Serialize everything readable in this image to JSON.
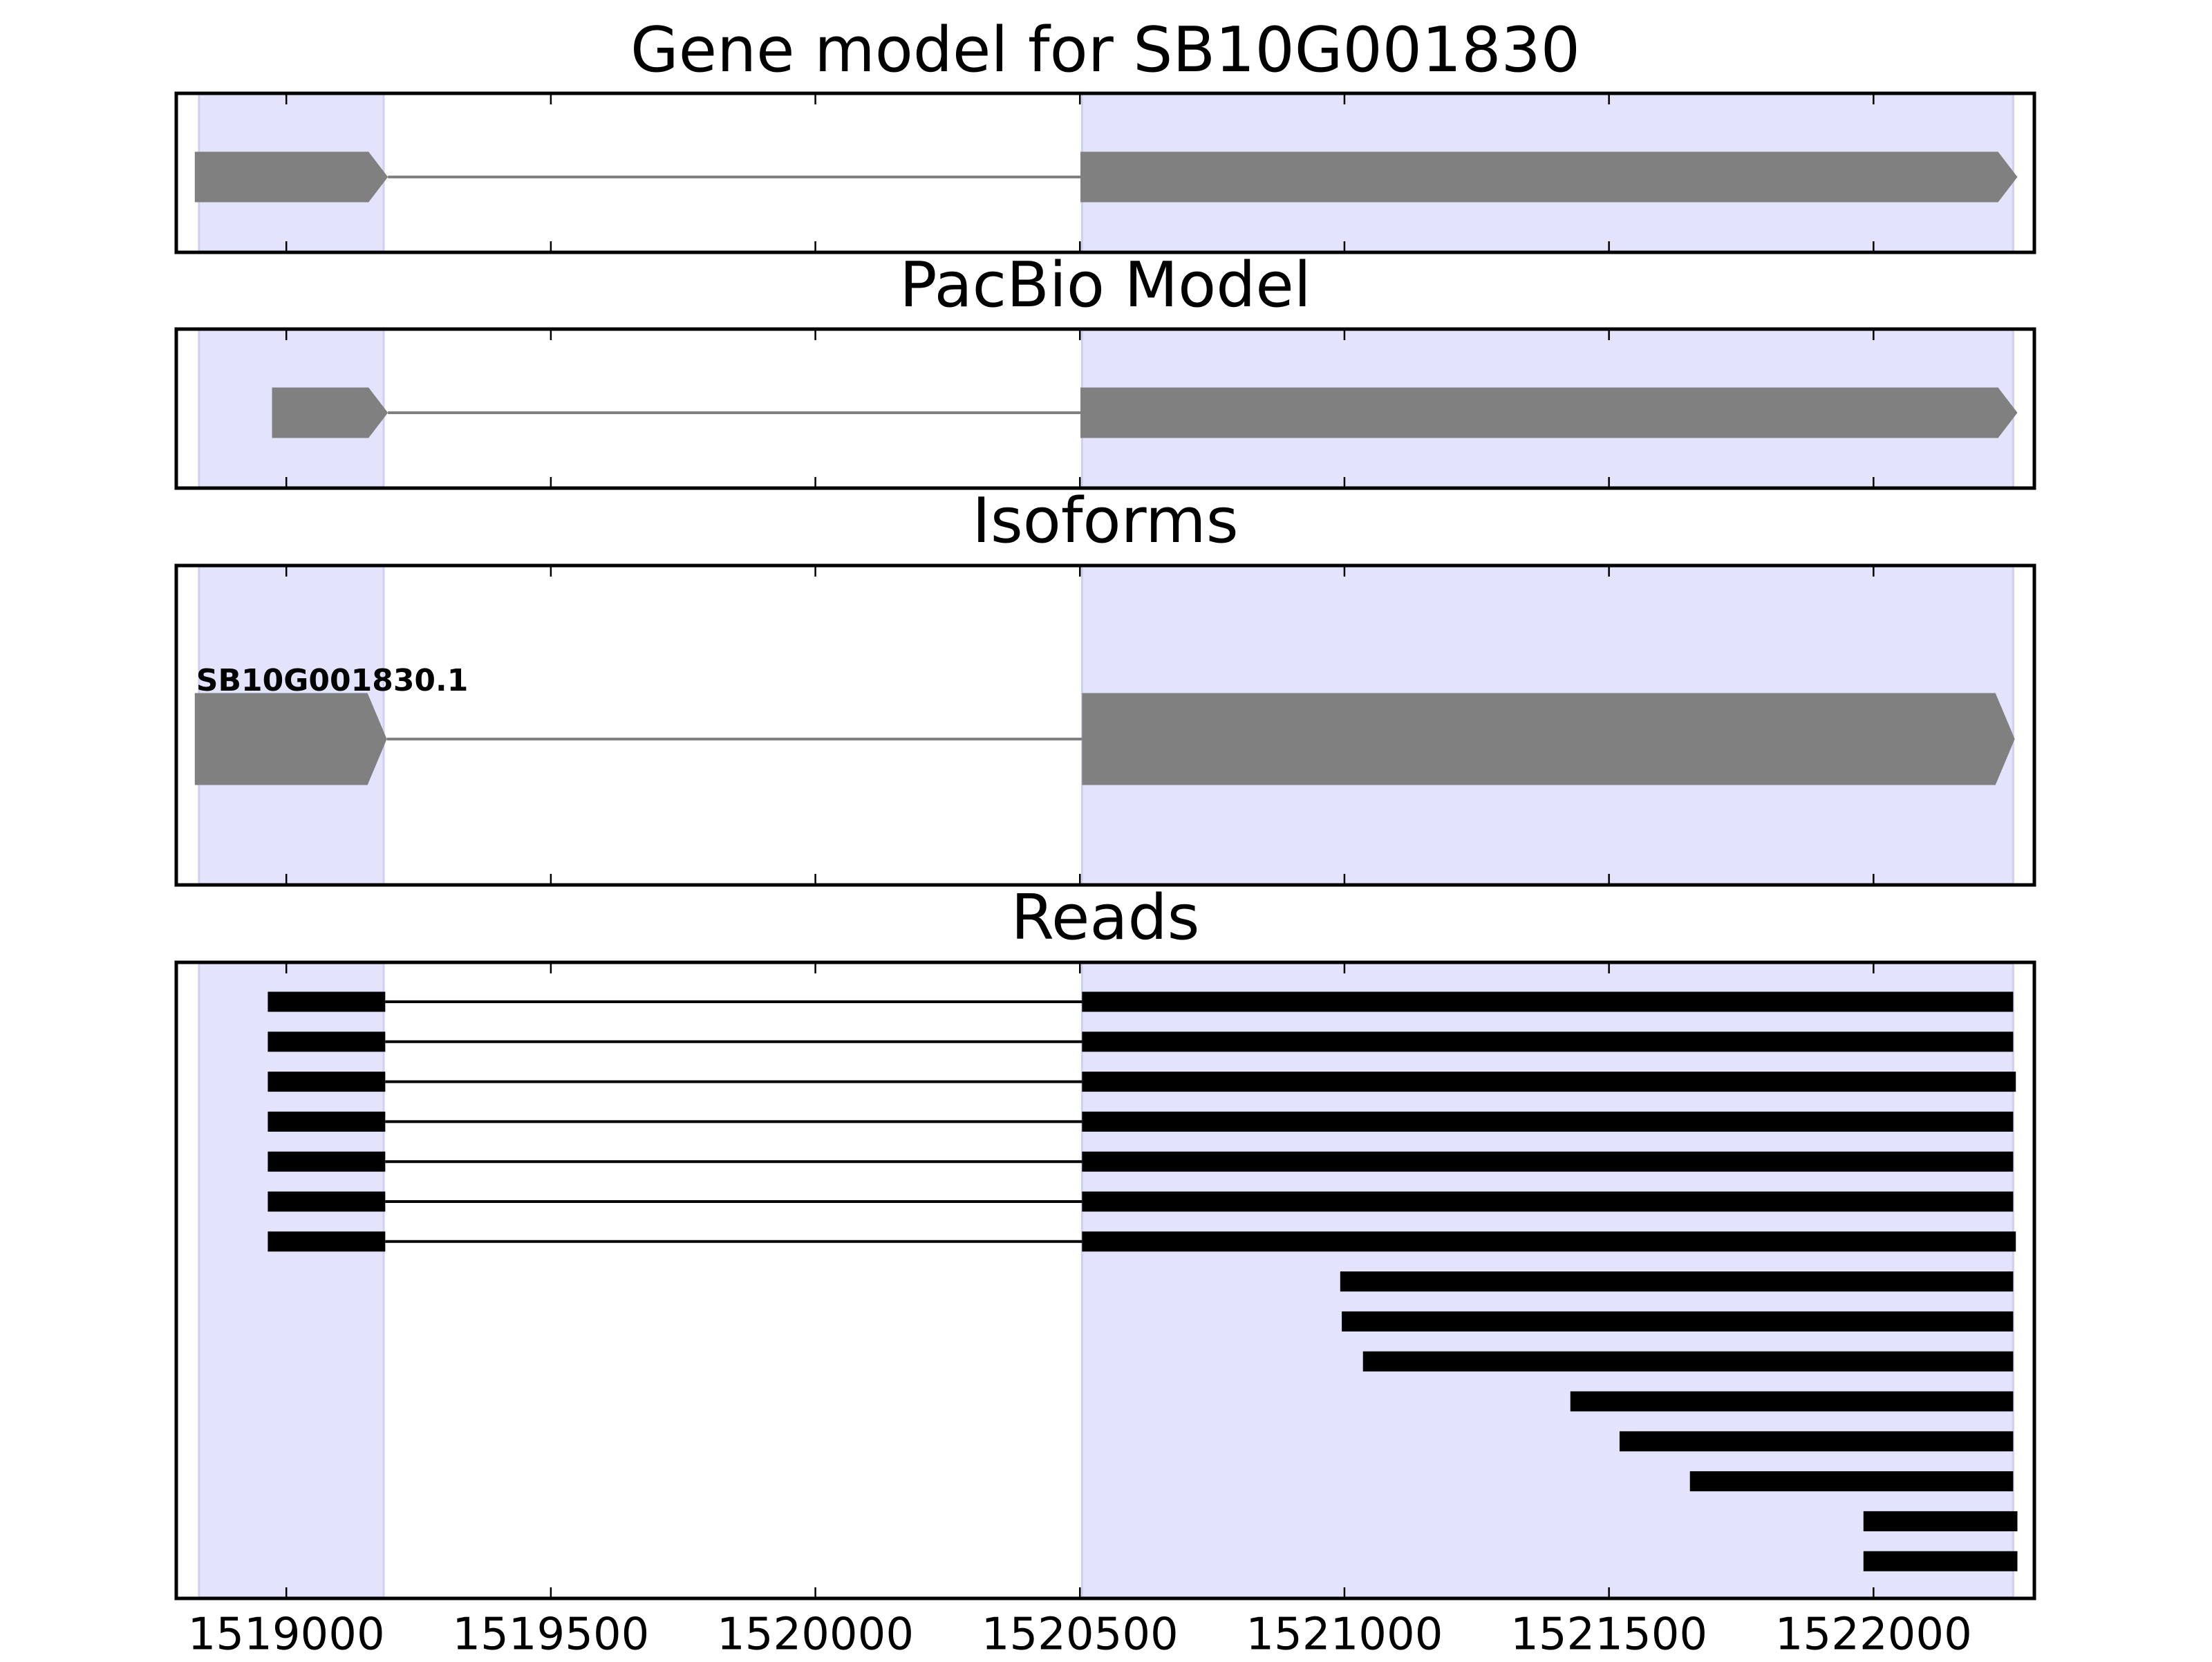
{
  "chart_data": [
    {
      "type": "gene",
      "title": "Gene model for SB10G001830",
      "color": "#808080",
      "shade_color": "#e3e3fc",
      "xlim": [
        1518792,
        1522304
      ],
      "xticks": [
        1519000,
        1519500,
        1520000,
        1520500,
        1521000,
        1521500,
        1522000
      ],
      "shaded": [
        [
          1518835,
          1519184
        ],
        [
          1520504,
          1522264
        ]
      ],
      "exons": [
        [
          1518827,
          1519192
        ],
        [
          1520501,
          1522272
        ]
      ]
    },
    {
      "type": "gene",
      "title": "PacBio Model",
      "color": "#808080",
      "shade_color": "#e3e3fc",
      "xlim": [
        1518792,
        1522304
      ],
      "xticks": [
        1519000,
        1519500,
        1520000,
        1520500,
        1521000,
        1521500,
        1522000
      ],
      "shaded": [
        [
          1518835,
          1519184
        ],
        [
          1520504,
          1522264
        ]
      ],
      "exons": [
        [
          1518973,
          1519192
        ],
        [
          1520501,
          1522272
        ]
      ]
    },
    {
      "type": "isoforms",
      "title": "Isoforms",
      "color": "#808080",
      "shade_color": "#e3e3fc",
      "xlim": [
        1518792,
        1522304
      ],
      "xticks": [
        1519000,
        1519500,
        1520000,
        1520500,
        1521000,
        1521500,
        1522000
      ],
      "shaded": [
        [
          1518835,
          1519184
        ],
        [
          1520504,
          1522264
        ]
      ],
      "series": [
        {
          "name": "SB10G001830.1",
          "exons": [
            [
              1518827,
              1519190
            ],
            [
              1520504,
              1522267
            ]
          ]
        }
      ]
    },
    {
      "type": "reads",
      "title": "Reads",
      "color": "#000000",
      "shade_color": "#e3e3fc",
      "xlim": [
        1518792,
        1522304
      ],
      "xticks": [
        1519000,
        1519500,
        1520000,
        1520500,
        1521000,
        1521500,
        1522000
      ],
      "shaded": [
        [
          1518835,
          1519184
        ],
        [
          1520504,
          1522264
        ]
      ],
      "reads": [
        [
          [
            1518965,
            1519187
          ],
          [
            1520504,
            1522264
          ]
        ],
        [
          [
            1518965,
            1519187
          ],
          [
            1520504,
            1522264
          ]
        ],
        [
          [
            1518965,
            1519187
          ],
          [
            1520504,
            1522269
          ]
        ],
        [
          [
            1518965,
            1519187
          ],
          [
            1520504,
            1522264
          ]
        ],
        [
          [
            1518965,
            1519187
          ],
          [
            1520504,
            1522264
          ]
        ],
        [
          [
            1518965,
            1519187
          ],
          [
            1520504,
            1522264
          ]
        ],
        [
          [
            1518965,
            1519187
          ],
          [
            1520504,
            1522269
          ]
        ],
        [
          [
            1520992,
            1522264
          ]
        ],
        [
          [
            1520995,
            1522264
          ]
        ],
        [
          [
            1521035,
            1522264
          ]
        ],
        [
          [
            1521427,
            1522264
          ]
        ],
        [
          [
            1521520,
            1522264
          ]
        ],
        [
          [
            1521653,
            1522264
          ]
        ],
        [
          [
            1521981,
            1522272
          ]
        ],
        [
          [
            1521981,
            1522272
          ]
        ]
      ]
    }
  ]
}
